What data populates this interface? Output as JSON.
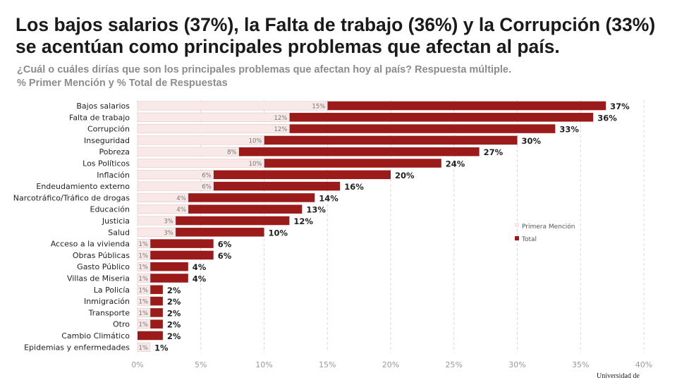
{
  "header": {
    "title_line1": "Los bajos salarios (37%), la Falta de trabajo (36%) y la Corrupción (33%)",
    "title_line2": "se acentúan como principales problemas que afectan al país.",
    "question": "¿Cuál o cuáles dirías que son los principales problemas que afectan hoy al país? Respuesta múltiple.",
    "measure": "% Primer Mención y % Total de Respuestas"
  },
  "logo_text": "Universidad de",
  "chart_data": {
    "type": "bar",
    "orientation": "horizontal",
    "categories": [
      "Bajos salarios",
      "Falta de trabajo",
      "Corrupción",
      "Inseguridad",
      "Pobreza",
      "Los Políticos",
      "Inflación",
      "Endeudamiento externo",
      "Narcotráfico/Tráfico de drogas",
      "Educación",
      "Justicia",
      "Salud",
      "Acceso a la vivienda",
      "Obras Públicas",
      "Gasto Público",
      "Villas de Miseria",
      "La Policía",
      "Inmigración",
      "Transporte",
      "Otro",
      "Cambio Climático",
      "Epidemias y enfermedades"
    ],
    "series": [
      {
        "name": "Primera Mención",
        "color": "#f8e8e8",
        "values": [
          15,
          12,
          12,
          10,
          8,
          10,
          6,
          6,
          4,
          4,
          3,
          3,
          1,
          1,
          1,
          1,
          1,
          1,
          1,
          1,
          0,
          1
        ]
      },
      {
        "name": "Total",
        "color": "#9b1b1b",
        "values": [
          37,
          36,
          33,
          30,
          27,
          24,
          20,
          16,
          14,
          13,
          12,
          10,
          6,
          6,
          4,
          4,
          2,
          2,
          2,
          2,
          2,
          1
        ]
      }
    ],
    "xlim": [
      0,
      40
    ],
    "xticks": [
      "0%",
      "5%",
      "10%",
      "15%",
      "20%",
      "25%",
      "30%",
      "35%",
      "40%"
    ],
    "grid": true,
    "legend": "right"
  }
}
